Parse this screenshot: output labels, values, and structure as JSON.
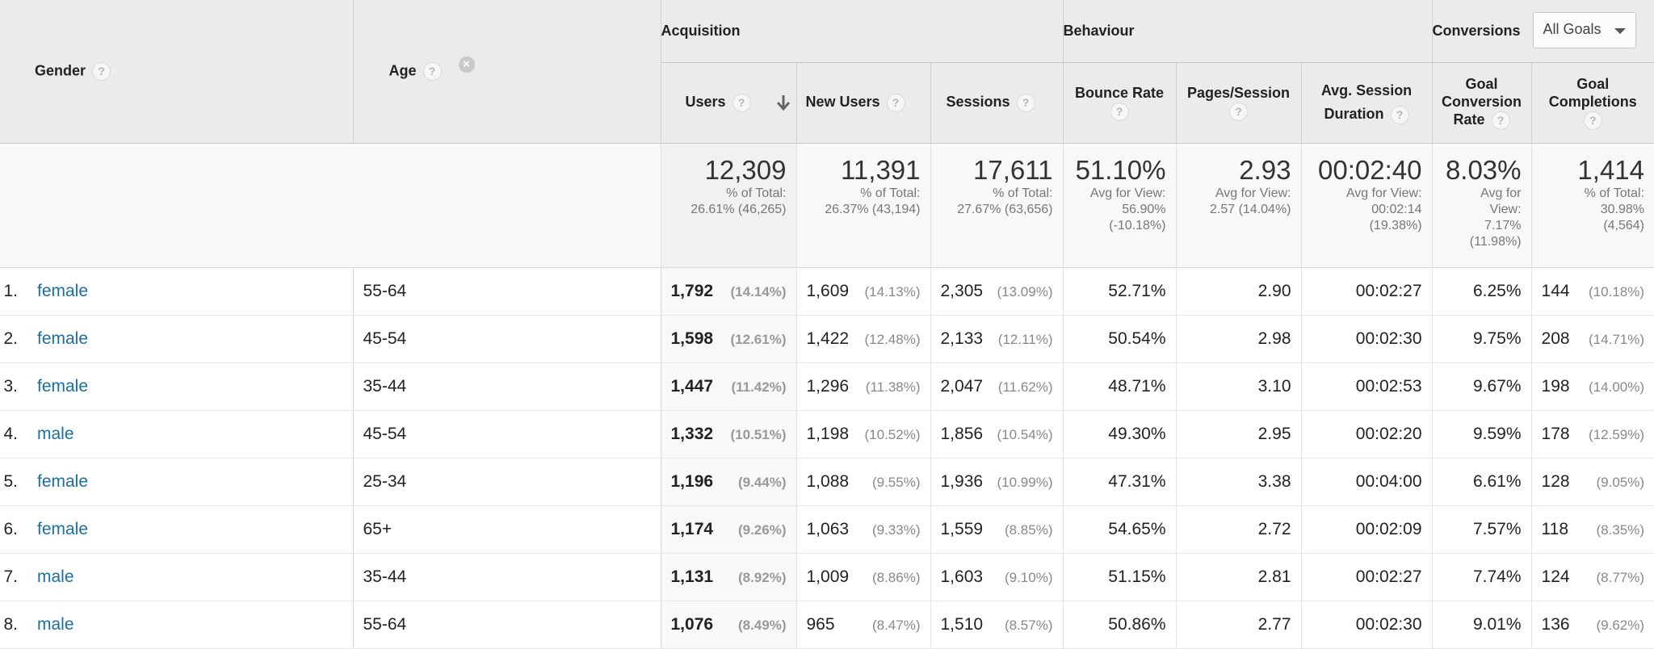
{
  "header": {
    "gender": "Gender",
    "age": "Age",
    "groups": {
      "acquisition": "Acquisition",
      "behaviour": "Behaviour",
      "conversions": "Conversions"
    },
    "goals_select": "All Goals",
    "metrics": {
      "users": "Users",
      "new_users": "New Users",
      "sessions": "Sessions",
      "bounce_rate": "Bounce Rate",
      "pages_session": "Pages/Session",
      "avg_session_1": "Avg. Session",
      "avg_session_2": "Duration",
      "goal_conv_1": "Goal",
      "goal_conv_2": "Conversion",
      "goal_conv_3": "Rate",
      "goal_comp_1": "Goal",
      "goal_comp_2": "Completions"
    },
    "help_glyph": "?",
    "clear_glyph": "×"
  },
  "totals": {
    "users": {
      "value": "12,309",
      "l1": "% of Total:",
      "l2": "26.61% (46,265)"
    },
    "new_users": {
      "value": "11,391",
      "l1": "% of Total:",
      "l2": "26.37% (43,194)"
    },
    "sessions": {
      "value": "17,611",
      "l1": "% of Total:",
      "l2": "27.67% (63,656)"
    },
    "bounce_rate": {
      "value": "51.10%",
      "l1": "Avg for View:",
      "l2": "56.90%",
      "l3": "(-10.18%)"
    },
    "pages_session": {
      "value": "2.93",
      "l1": "Avg for View:",
      "l2": "2.57 (14.04%)"
    },
    "avg_duration": {
      "value": "00:02:40",
      "l1": "Avg for View:",
      "l2": "00:02:14",
      "l3": "(19.38%)"
    },
    "goal_conv_rate": {
      "value": "8.03%",
      "l1": "Avg for",
      "l2": "View:",
      "l3": "7.17%",
      "l4": "(11.98%)"
    },
    "goal_completions": {
      "value": "1,414",
      "l1": "% of Total:",
      "l2": "30.98%",
      "l3": "(4,564)"
    }
  },
  "rows": [
    {
      "index": "1.",
      "gender": "female",
      "age": "55-64",
      "users": "1,792",
      "users_pct": "(14.14%)",
      "new_users": "1,609",
      "new_users_pct": "(14.13%)",
      "sessions": "2,305",
      "sessions_pct": "(13.09%)",
      "bounce_rate": "52.71%",
      "pages_session": "2.90",
      "avg_duration": "00:02:27",
      "goal_conv_rate": "6.25%",
      "goal_completions": "144",
      "goal_completions_pct": "(10.18%)"
    },
    {
      "index": "2.",
      "gender": "female",
      "age": "45-54",
      "users": "1,598",
      "users_pct": "(12.61%)",
      "new_users": "1,422",
      "new_users_pct": "(12.48%)",
      "sessions": "2,133",
      "sessions_pct": "(12.11%)",
      "bounce_rate": "50.54%",
      "pages_session": "2.98",
      "avg_duration": "00:02:30",
      "goal_conv_rate": "9.75%",
      "goal_completions": "208",
      "goal_completions_pct": "(14.71%)"
    },
    {
      "index": "3.",
      "gender": "female",
      "age": "35-44",
      "users": "1,447",
      "users_pct": "(11.42%)",
      "new_users": "1,296",
      "new_users_pct": "(11.38%)",
      "sessions": "2,047",
      "sessions_pct": "(11.62%)",
      "bounce_rate": "48.71%",
      "pages_session": "3.10",
      "avg_duration": "00:02:53",
      "goal_conv_rate": "9.67%",
      "goal_completions": "198",
      "goal_completions_pct": "(14.00%)"
    },
    {
      "index": "4.",
      "gender": "male",
      "age": "45-54",
      "users": "1,332",
      "users_pct": "(10.51%)",
      "new_users": "1,198",
      "new_users_pct": "(10.52%)",
      "sessions": "1,856",
      "sessions_pct": "(10.54%)",
      "bounce_rate": "49.30%",
      "pages_session": "2.95",
      "avg_duration": "00:02:20",
      "goal_conv_rate": "9.59%",
      "goal_completions": "178",
      "goal_completions_pct": "(12.59%)"
    },
    {
      "index": "5.",
      "gender": "female",
      "age": "25-34",
      "users": "1,196",
      "users_pct": "(9.44%)",
      "new_users": "1,088",
      "new_users_pct": "(9.55%)",
      "sessions": "1,936",
      "sessions_pct": "(10.99%)",
      "bounce_rate": "47.31%",
      "pages_session": "3.38",
      "avg_duration": "00:04:00",
      "goal_conv_rate": "6.61%",
      "goal_completions": "128",
      "goal_completions_pct": "(9.05%)"
    },
    {
      "index": "6.",
      "gender": "female",
      "age": "65+",
      "users": "1,174",
      "users_pct": "(9.26%)",
      "new_users": "1,063",
      "new_users_pct": "(9.33%)",
      "sessions": "1,559",
      "sessions_pct": "(8.85%)",
      "bounce_rate": "54.65%",
      "pages_session": "2.72",
      "avg_duration": "00:02:09",
      "goal_conv_rate": "7.57%",
      "goal_completions": "118",
      "goal_completions_pct": "(8.35%)"
    },
    {
      "index": "7.",
      "gender": "male",
      "age": "35-44",
      "users": "1,131",
      "users_pct": "(8.92%)",
      "new_users": "1,009",
      "new_users_pct": "(8.86%)",
      "sessions": "1,603",
      "sessions_pct": "(9.10%)",
      "bounce_rate": "51.15%",
      "pages_session": "2.81",
      "avg_duration": "00:02:27",
      "goal_conv_rate": "7.74%",
      "goal_completions": "124",
      "goal_completions_pct": "(8.77%)"
    },
    {
      "index": "8.",
      "gender": "male",
      "age": "55-64",
      "users": "1,076",
      "users_pct": "(8.49%)",
      "new_users": "965",
      "new_users_pct": "(8.47%)",
      "sessions": "1,510",
      "sessions_pct": "(8.57%)",
      "bounce_rate": "50.86%",
      "pages_session": "2.77",
      "avg_duration": "00:02:30",
      "goal_conv_rate": "9.01%",
      "goal_completions": "136",
      "goal_completions_pct": "(9.62%)"
    }
  ],
  "colors": {
    "link": "#1a6ea6",
    "header_bg": "#ebebeb",
    "totals_bg": "#f8f8f8"
  },
  "icons": {
    "help": "help-icon",
    "clear": "clear-dimension-icon",
    "sort": "sort-descending-icon",
    "dropdown": "dropdown-caret-icon"
  }
}
